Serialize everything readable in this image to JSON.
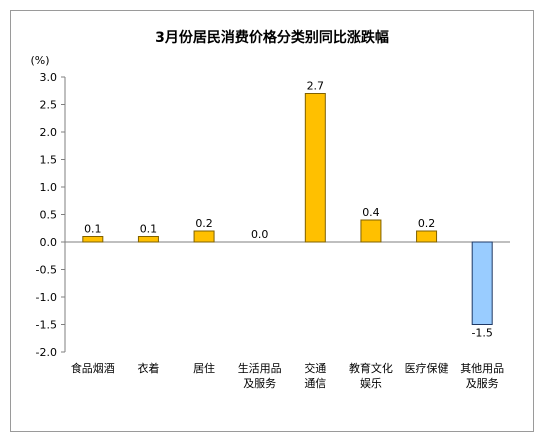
{
  "chart_data": {
    "type": "bar",
    "title": "3月份居民消费价格分类别同比涨跌幅",
    "unit_label": "(%)",
    "categories": [
      [
        "食品烟酒"
      ],
      [
        "衣着"
      ],
      [
        "居住"
      ],
      [
        "生活用品",
        "及服务"
      ],
      [
        "交通",
        "通信"
      ],
      [
        "教育文化",
        "娱乐"
      ],
      [
        "医疗保健"
      ],
      [
        "其他用品",
        "及服务"
      ]
    ],
    "values": [
      0.1,
      0.1,
      0.2,
      0.0,
      2.7,
      0.4,
      0.2,
      -1.5
    ],
    "value_labels": [
      "0.1",
      "0.1",
      "0.2",
      "0.0",
      "2.7",
      "0.4",
      "0.2",
      "-1.5"
    ],
    "ylim": [
      -2.0,
      3.0
    ],
    "yticks": [
      "3.0",
      "2.5",
      "2.0",
      "1.5",
      "1.0",
      "0.5",
      "0.0",
      "-0.5",
      "-1.0",
      "-1.5",
      "-2.0"
    ],
    "grid": false,
    "colors": {
      "positive_fill": "#FFC000",
      "positive_stroke": "#7F6000",
      "negative_fill": "#99CCFF",
      "negative_stroke": "#1F3864",
      "axis": "#7f7f7f"
    }
  }
}
